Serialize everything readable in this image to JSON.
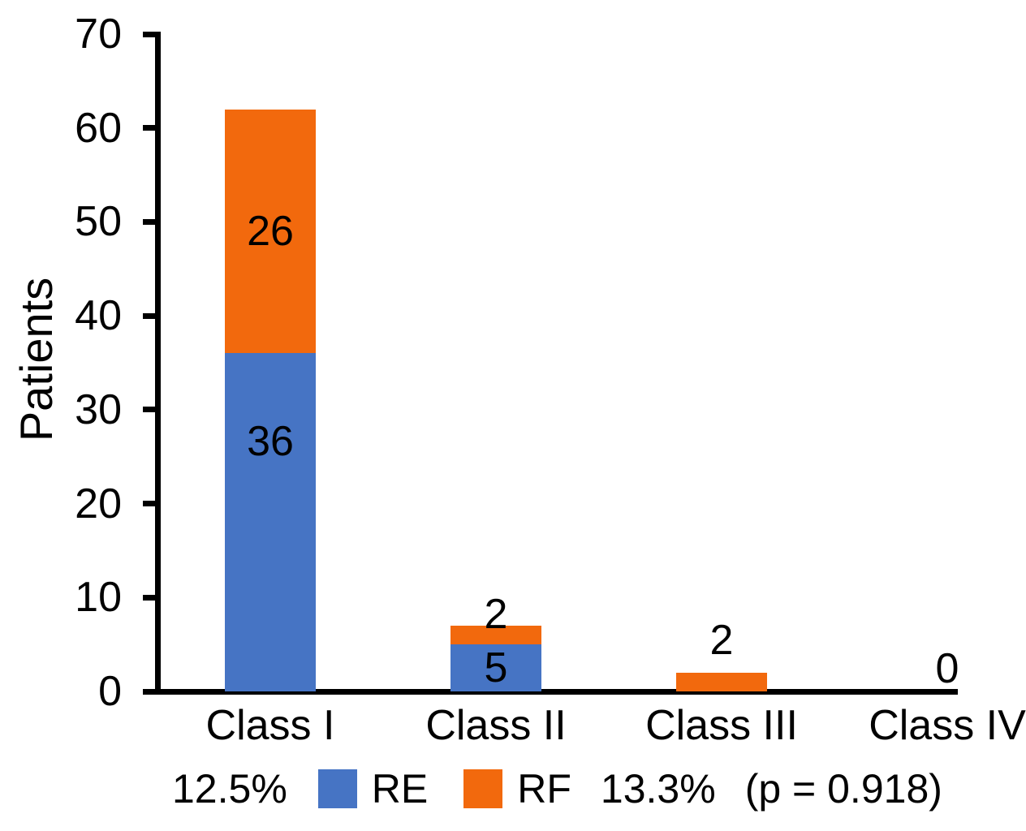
{
  "chart_data": {
    "type": "bar",
    "stacked": true,
    "title": "",
    "ylabel": "Patients",
    "xlabel": "",
    "ylim": [
      0,
      70
    ],
    "yticks": [
      0,
      10,
      20,
      30,
      40,
      50,
      60,
      70
    ],
    "grid": false,
    "categories": [
      "Class I",
      "Class II",
      "Class III",
      "Class IV"
    ],
    "series": [
      {
        "name": "RE",
        "color": "#4674C4",
        "values": [
          36,
          5,
          0,
          0
        ]
      },
      {
        "name": "RF",
        "color": "#F2690D",
        "values": [
          26,
          2,
          2,
          0
        ]
      }
    ],
    "zero_stack_label": "0",
    "axis_color": "#000000",
    "legend": {
      "position": "bottom",
      "left_annotation": "12.5%",
      "entries": [
        {
          "label": "RE",
          "color": "#4674C4"
        },
        {
          "label": "RF",
          "color": "#F2690D"
        }
      ],
      "right_annotation": "13.3%",
      "p_value": "(p = 0.918)"
    }
  }
}
